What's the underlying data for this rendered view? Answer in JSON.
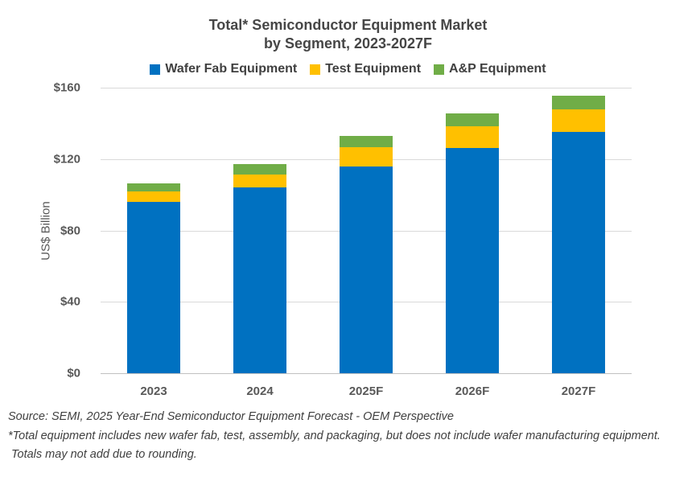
{
  "title": {
    "line1": "Total* Semiconductor Equipment Market",
    "line2": "by Segment, 2023-2027F"
  },
  "chart_data": {
    "type": "bar",
    "stacked": true,
    "categories": [
      "2023",
      "2024",
      "2025F",
      "2026F",
      "2027F"
    ],
    "series": [
      {
        "name": "Wafer Fab Equipment",
        "color": "#0071C1",
        "values": [
          96,
          104,
          116,
          126,
          135
        ]
      },
      {
        "name": "Test Equipment",
        "color": "#FFC000",
        "values": [
          6,
          7.5,
          10.5,
          12.5,
          13
        ]
      },
      {
        "name": "A&P Equipment",
        "color": "#70AD47",
        "values": [
          4.5,
          5.5,
          6.5,
          7,
          7.5
        ]
      }
    ],
    "title": "Total* Semiconductor Equipment Market by Segment, 2023-2027F",
    "xlabel": "",
    "ylabel": "US$ Billion",
    "ylim": [
      0,
      160
    ],
    "yticks": [
      {
        "value": 0,
        "label": "$0"
      },
      {
        "value": 40,
        "label": "$40"
      },
      {
        "value": 80,
        "label": "$80"
      },
      {
        "value": 120,
        "label": "$120"
      },
      {
        "value": 160,
        "label": "$160"
      }
    ],
    "grid": true,
    "legend_position": "top"
  },
  "footer": {
    "line1": "Source: SEMI, 2025 Year-End Semiconductor Equipment Forecast - OEM Perspective",
    "line2": "*Total equipment includes new wafer fab, test, assembly, and packaging, but does not include wafer manufacturing equipment.",
    "line3": "Totals may not add due to rounding."
  }
}
